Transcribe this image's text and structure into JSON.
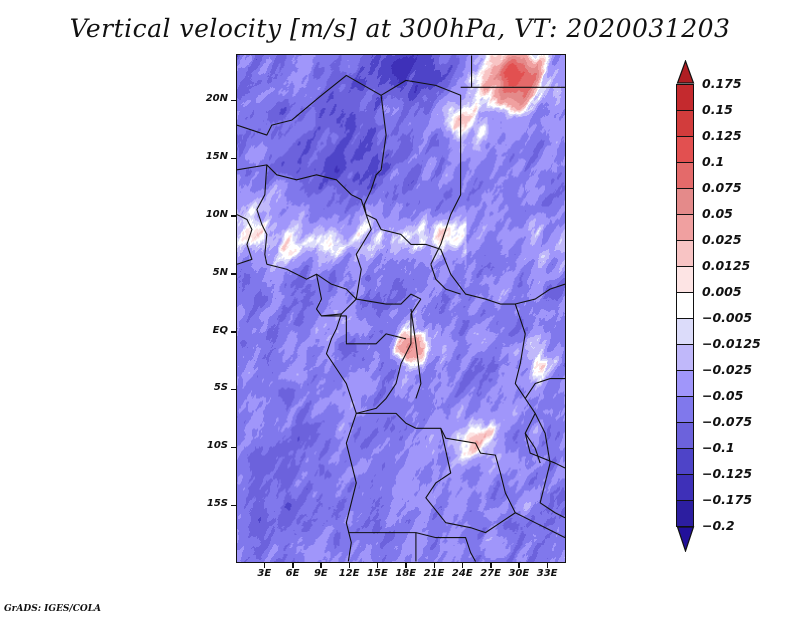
{
  "title": "Vertical velocity [m/s] at 300hPa, VT: 2020031203",
  "footer": "GrADS: IGES/COLA",
  "map": {
    "variable": "Vertical velocity",
    "units": "m/s",
    "level": "300hPa",
    "valid_time": "2020031203",
    "lon_range": [
      0,
      35
    ],
    "lat_range": [
      -20,
      24
    ],
    "y_axis": {
      "ticks": [
        {
          "label": "20N",
          "lat": 20
        },
        {
          "label": "15N",
          "lat": 15
        },
        {
          "label": "10N",
          "lat": 10
        },
        {
          "label": "5N",
          "lat": 5
        },
        {
          "label": "EQ",
          "lat": 0
        },
        {
          "label": "5S",
          "lat": -5
        },
        {
          "label": "10S",
          "lat": -10
        },
        {
          "label": "15S",
          "lat": -15
        }
      ]
    },
    "x_axis": {
      "ticks": [
        {
          "label": "3E",
          "lon": 3
        },
        {
          "label": "6E",
          "lon": 6
        },
        {
          "label": "9E",
          "lon": 9
        },
        {
          "label": "12E",
          "lon": 12
        },
        {
          "label": "15E",
          "lon": 15
        },
        {
          "label": "18E",
          "lon": 18
        },
        {
          "label": "21E",
          "lon": 21
        },
        {
          "label": "24E",
          "lon": 24
        },
        {
          "label": "27E",
          "lon": 27
        },
        {
          "label": "30E",
          "lon": 30
        },
        {
          "label": "33E",
          "lon": 33
        }
      ]
    }
  },
  "colorbar": {
    "orientation": "vertical",
    "placement": "right",
    "extend": "both",
    "levels": [
      "0.175",
      "0.15",
      "0.125",
      "0.1",
      "0.075",
      "0.05",
      "0.025",
      "0.0125",
      "0.005",
      "−0.005",
      "−0.0125",
      "−0.025",
      "−0.05",
      "−0.075",
      "−0.1",
      "−0.125",
      "−0.175",
      "−0.2"
    ],
    "colors": [
      "#b01e23",
      "#c42a2e",
      "#d23c3c",
      "#e25050",
      "#e46a6a",
      "#e48a8a",
      "#f0a0a0",
      "#f8c4c4",
      "#fde4e4",
      "#ffffff",
      "#dcdcfa",
      "#c0b8fa",
      "#a096fa",
      "#8078ec",
      "#6c62dc",
      "#4e44c8",
      "#3e30b8",
      "#2c1ea0",
      "#22109a"
    ],
    "top_arrow_color": "#b01e23",
    "bottom_arrow_color": "#22109a"
  }
}
